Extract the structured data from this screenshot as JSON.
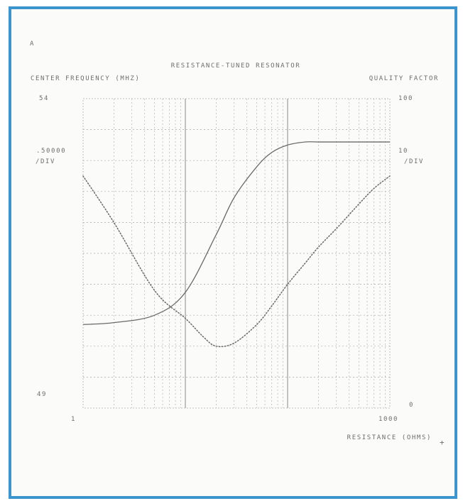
{
  "chart_data": {
    "type": "line",
    "corner_mark": "A",
    "title": "RESISTANCE-TUNED RESONATOR",
    "left_axis": {
      "label": "CENTER FREQUENCY (MHZ)",
      "top": "54",
      "bottom": "49",
      "scale": ".50000",
      "unit": "/DIV",
      "ylim": [
        49,
        54
      ]
    },
    "right_axis": {
      "label": "QUALITY FACTOR",
      "top": "100",
      "bottom": "0",
      "scale": "10",
      "unit": "/DIV",
      "ylim": [
        0,
        100
      ]
    },
    "x_axis": {
      "label": "RESISTANCE (OHMS)",
      "scale": "log",
      "xlim": [
        1,
        1000
      ],
      "tick_labels": [
        "1",
        "1000"
      ]
    },
    "grid": true,
    "series": [
      {
        "axis": "left",
        "style": "solid",
        "x": [
          1,
          2,
          5,
          10,
          20,
          30,
          50,
          70,
          100,
          150,
          200,
          300,
          500,
          700,
          1000
        ],
        "y": [
          50.35,
          50.38,
          50.5,
          50.87,
          51.8,
          52.4,
          52.9,
          53.13,
          53.25,
          53.3,
          53.3,
          53.3,
          53.3,
          53.3,
          53.3
        ]
      },
      {
        "axis": "right",
        "style": "dotted",
        "x": [
          1,
          2,
          5,
          10,
          15,
          20,
          30,
          50,
          70,
          100,
          150,
          200,
          300,
          500,
          700,
          1000
        ],
        "y": [
          75,
          60,
          38,
          29,
          23,
          20,
          21,
          27,
          33,
          40,
          47,
          52,
          58,
          66,
          71,
          75
        ]
      }
    ]
  }
}
